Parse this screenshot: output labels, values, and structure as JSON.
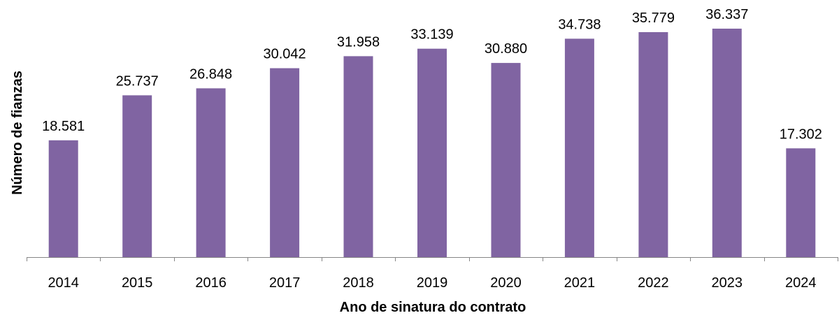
{
  "chart_data": {
    "type": "bar",
    "title": "",
    "xlabel": "Ano de sinatura do contrato",
    "ylabel": "Número de  fianzas",
    "categories": [
      "2014",
      "2015",
      "2016",
      "2017",
      "2018",
      "2019",
      "2020",
      "2021",
      "2022",
      "2023",
      "2024"
    ],
    "values": [
      18581,
      25737,
      26848,
      30042,
      31958,
      33139,
      30880,
      34738,
      35779,
      36337,
      17302
    ],
    "data_labels": [
      "18.581",
      "25.737",
      "26.848",
      "30.042",
      "31.958",
      "33.139",
      "30.880",
      "34.738",
      "35.779",
      "36.337",
      "17.302"
    ],
    "ylim": [
      0,
      40000
    ],
    "grid": false,
    "legend": "none",
    "colors": {
      "bar": "#8064A2",
      "axis": "#868686",
      "text": "#000000"
    }
  }
}
